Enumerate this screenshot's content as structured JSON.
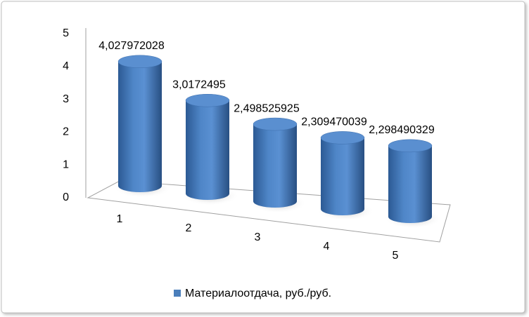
{
  "chart_data": {
    "type": "bar3d",
    "categories": [
      "1",
      "2",
      "3",
      "4",
      "5"
    ],
    "series": [
      {
        "name": "Материалоотдача, руб./руб.",
        "color": "#4a7ebb",
        "values": [
          4.027972028,
          3.0172495,
          2.498525925,
          2.309470039,
          2.298490329
        ],
        "value_labels": [
          "4,027972028",
          "3,0172495",
          "2,498525925",
          "2,309470039",
          "2,298490329"
        ]
      }
    ],
    "ylim": [
      0,
      5
    ],
    "yticks": [
      0,
      1,
      2,
      3,
      4,
      5
    ],
    "grid": false,
    "legend": "bottom"
  }
}
